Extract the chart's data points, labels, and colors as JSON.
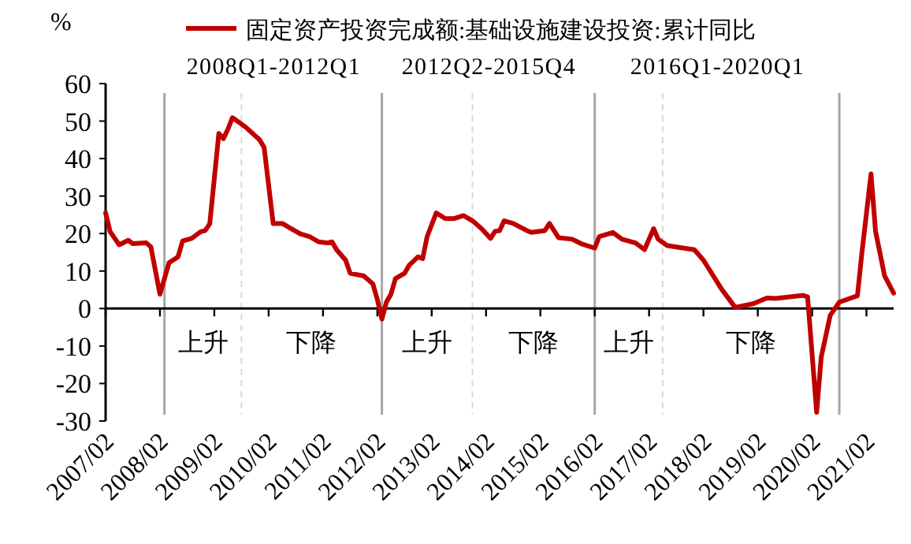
{
  "chart_data": {
    "type": "line",
    "ylabel": "%",
    "legend": "top",
    "grid": false,
    "marker": "none",
    "line_style": "solid",
    "x": [
      "2007-02",
      "2007-03",
      "2007-05",
      "2007-07",
      "2007-08",
      "2007-11",
      "2007-12",
      "2008-02",
      "2008-04",
      "2008-06",
      "2008-07",
      "2008-09",
      "2008-11",
      "2008-12",
      "2009-01",
      "2009-03",
      "2009-04",
      "2009-05",
      "2009-06",
      "2009-08",
      "2009-09",
      "2009-12",
      "2010-01",
      "2010-03",
      "2010-05",
      "2010-07",
      "2010-09",
      "2010-11",
      "2011-01",
      "2011-03",
      "2011-04",
      "2011-05",
      "2011-07",
      "2011-08",
      "2011-11",
      "2012-01",
      "2012-02",
      "2012-03",
      "2012-04",
      "2012-05",
      "2012-06",
      "2012-08",
      "2012-09",
      "2012-11",
      "2012-12",
      "2013-01",
      "2013-03",
      "2013-05",
      "2013-07",
      "2013-09",
      "2013-11",
      "2014-01",
      "2014-03",
      "2014-04",
      "2014-05",
      "2014-06",
      "2014-08",
      "2014-11",
      "2014-12",
      "2015-03",
      "2015-04",
      "2015-06",
      "2015-09",
      "2015-11",
      "2016-02",
      "2016-03",
      "2016-06",
      "2016-08",
      "2016-11",
      "2017-01",
      "2017-03",
      "2017-04",
      "2017-06",
      "2017-12",
      "2018-02",
      "2018-06",
      "2018-09",
      "2019-01",
      "2019-04",
      "2019-06",
      "2019-12",
      "2020-01",
      "2020-03",
      "2020-04",
      "2020-06",
      "2020-08",
      "2020-12",
      "2021-01",
      "2021-03",
      "2021-04",
      "2021-06",
      "2021-08"
    ],
    "series": [
      {
        "name": "固定资产投资完成额:基础设施建设投资:累计同比",
        "color": "#c00000",
        "values": [
          25.5,
          20.5,
          17,
          18.2,
          17.3,
          17.5,
          16.4,
          3.8,
          12.2,
          13.8,
          18,
          18.7,
          20.5,
          20.8,
          22.6,
          46.7,
          45.3,
          47.8,
          50.9,
          49.2,
          48.3,
          45,
          43,
          22.7,
          22.7,
          21.3,
          19.9,
          19.2,
          17.8,
          17.5,
          17.8,
          15.7,
          12.9,
          9.4,
          8.7,
          6.6,
          2.4,
          -2.8,
          1.7,
          3.8,
          8,
          9.4,
          11.5,
          13.8,
          13.3,
          19.2,
          25.5,
          24,
          24,
          24.8,
          23.4,
          21.3,
          18.7,
          20.6,
          20.8,
          23.4,
          22.7,
          20.8,
          20.3,
          20.8,
          22.7,
          18.9,
          18.5,
          17.3,
          16.1,
          19.2,
          20.3,
          18.5,
          17.5,
          15.7,
          21.3,
          18.5,
          16.8,
          15.7,
          12.9,
          5.2,
          0.3,
          1.3,
          2.8,
          2.7,
          3.5,
          3.1,
          -27.7,
          -13,
          -1.8,
          1.7,
          3.4,
          15,
          35.9,
          20.6,
          8.7,
          4.1
        ]
      }
    ],
    "xlim": [
      "2007-02",
      "2021-08"
    ],
    "xticks": [
      {
        "value": "2007-02",
        "label": "2007/02"
      },
      {
        "value": "2008-02",
        "label": "2008/02"
      },
      {
        "value": "2009-02",
        "label": "2009/02"
      },
      {
        "value": "2010-02",
        "label": "2010/02"
      },
      {
        "value": "2011-02",
        "label": "2011/02"
      },
      {
        "value": "2012-02",
        "label": "2012/02"
      },
      {
        "value": "2013-02",
        "label": "2013/02"
      },
      {
        "value": "2014-02",
        "label": "2014/02"
      },
      {
        "value": "2015-02",
        "label": "2015/02"
      },
      {
        "value": "2016-02",
        "label": "2016/02"
      },
      {
        "value": "2017-02",
        "label": "2017/02"
      },
      {
        "value": "2018-02",
        "label": "2018/02"
      },
      {
        "value": "2019-02",
        "label": "2019/02"
      },
      {
        "value": "2020-02",
        "label": "2020/02"
      },
      {
        "value": "2021-02",
        "label": "2021/02"
      }
    ],
    "ylim": [
      -30,
      60
    ],
    "yticks": [
      -30,
      -20,
      -10,
      0,
      10,
      20,
      30,
      40,
      50,
      60
    ],
    "ref_lines": [
      {
        "axis": "x",
        "value": "2008-03",
        "label": null,
        "color": "#a6a6a6",
        "line_style": "solid"
      },
      {
        "axis": "x",
        "value": "2012-03",
        "label": null,
        "color": "#a6a6a6",
        "line_style": "solid"
      },
      {
        "axis": "x",
        "value": "2016-02",
        "label": null,
        "color": "#a6a6a6",
        "line_style": "solid"
      },
      {
        "axis": "x",
        "value": "2020-08",
        "label": null,
        "color": "#a6a6a6",
        "line_style": "solid"
      },
      {
        "axis": "x",
        "value": "2009-08",
        "label": null,
        "color": "#d9d9d9",
        "line_style": "dashed"
      },
      {
        "axis": "x",
        "value": "2013-11",
        "label": null,
        "color": "#d9d9d9",
        "line_style": "dashed"
      },
      {
        "axis": "x",
        "value": "2017-05",
        "label": null,
        "color": "#d9d9d9",
        "line_style": "dashed"
      }
    ],
    "annotations": [
      "2008Q1-2012Q1",
      "2012Q2-2015Q4",
      "2016Q1-2020Q1",
      "上升",
      "下降",
      "上升",
      "下降",
      "上升",
      "下降"
    ]
  }
}
